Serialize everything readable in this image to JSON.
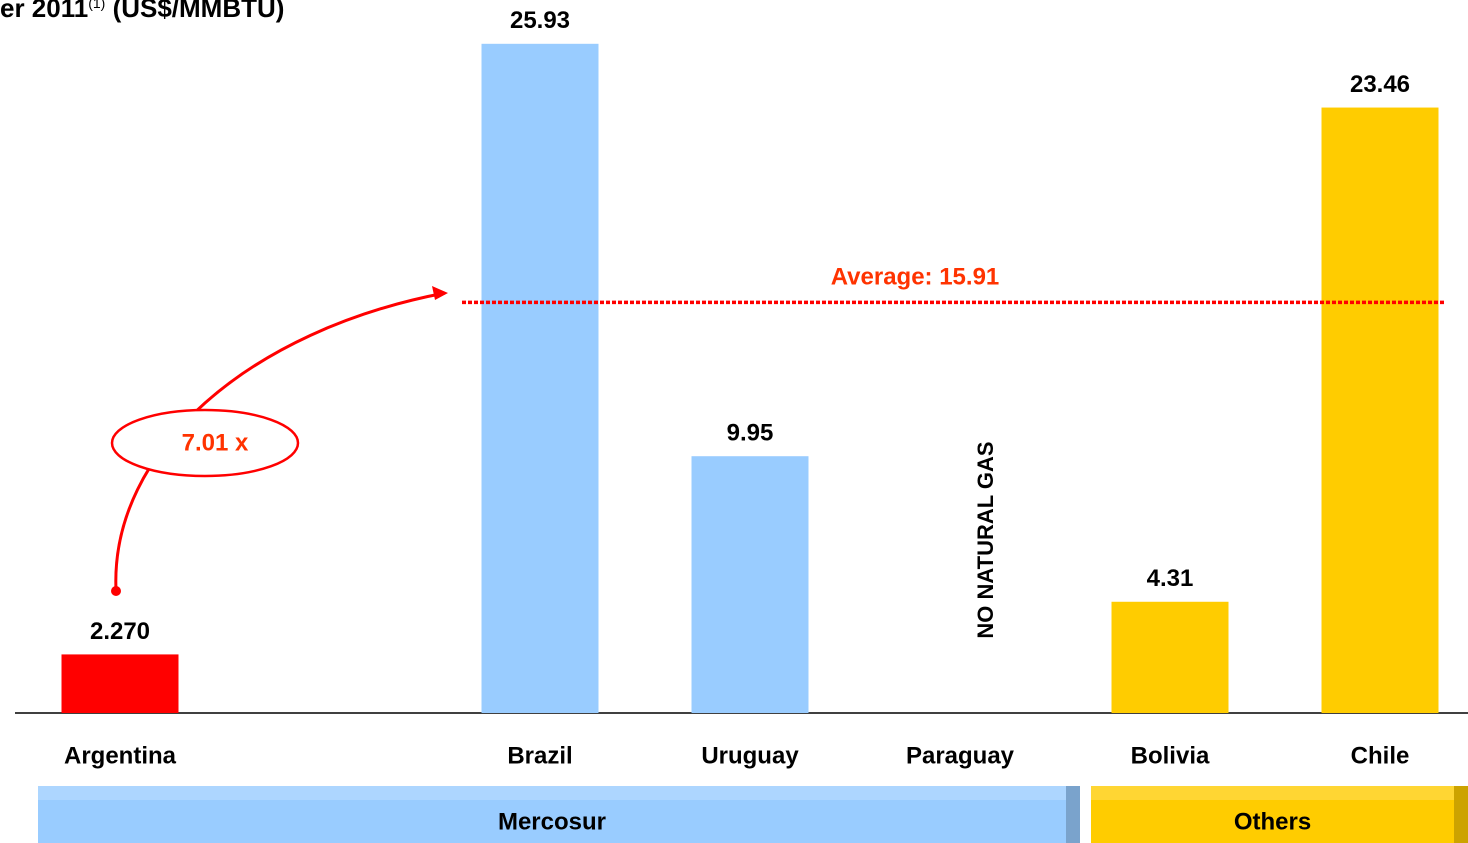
{
  "chart_data": {
    "type": "bar",
    "title": {
      "main": "er 2011",
      "note": "(1)",
      "unit": " (US$/MMBTU)"
    },
    "categories": [
      "Argentina",
      null,
      "Brazil",
      "Uruguay",
      "Paraguay",
      "Bolivia",
      "Chile"
    ],
    "values": [
      2.27,
      null,
      25.93,
      9.95,
      null,
      4.31,
      23.46
    ],
    "value_labels": [
      "2.270",
      null,
      "25.93",
      "9.95",
      null,
      "4.31",
      "23.46"
    ],
    "colors": [
      "#ff0000",
      null,
      "#99ccff",
      "#99ccff",
      null,
      "#ffcc00",
      "#ffcc00"
    ],
    "ylim": [
      0,
      26
    ],
    "average": {
      "value": 15.91,
      "label": "Average: 15.91",
      "color": "#ff0000"
    },
    "ratio_label": "7.01 x",
    "paraguay_note": "NO NATURAL GAS",
    "groups": [
      {
        "name": "Mercosur",
        "color": "#99ccff"
      },
      {
        "name": "Others",
        "color": "#ffcc00"
      }
    ]
  }
}
